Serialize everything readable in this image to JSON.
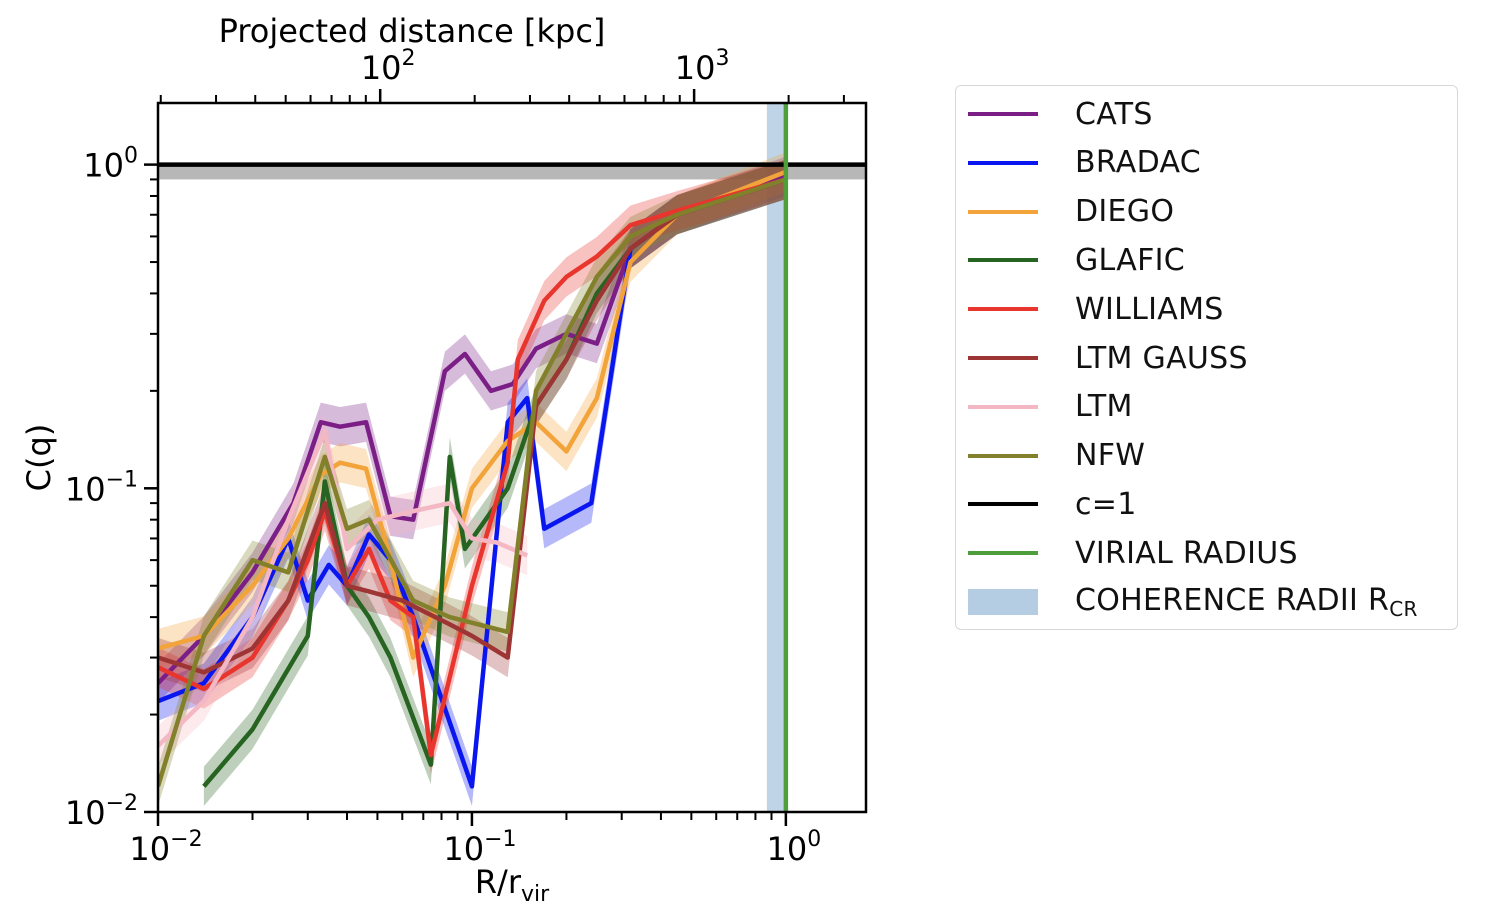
{
  "chart_data": {
    "type": "line",
    "xscale": "log",
    "yscale": "log",
    "xlim": [
      0.01,
      1.8
    ],
    "ylim": [
      0.01,
      1.55
    ],
    "xlabel_base": "R/r",
    "xlabel_sub": "vir",
    "ylabel": "C(q)",
    "top_axis_label": "Projected distance [kpc]",
    "top_axis_kpc_per_rvir": 1960,
    "x_ticks": [
      {
        "value": 0.01,
        "base": "10",
        "exp": "−2"
      },
      {
        "value": 0.1,
        "base": "10",
        "exp": "−1"
      },
      {
        "value": 1,
        "base": "10",
        "exp": "0"
      }
    ],
    "y_ticks": [
      {
        "value": 0.01,
        "base": "10",
        "exp": "−2"
      },
      {
        "value": 0.1,
        "base": "10",
        "exp": "−1"
      },
      {
        "value": 1,
        "base": "10",
        "exp": "0"
      }
    ],
    "top_ticks": [
      {
        "value": 100,
        "base": "10",
        "exp": "2"
      },
      {
        "value": 1000,
        "base": "10",
        "exp": "3"
      }
    ],
    "series": [
      {
        "name": "CATS",
        "color": "#7b1f87",
        "x": [
          0.01,
          0.014,
          0.02,
          0.027,
          0.033,
          0.038,
          0.046,
          0.055,
          0.065,
          0.082,
          0.095,
          0.115,
          0.135,
          0.16,
          0.2,
          0.25,
          0.32,
          0.45,
          1.0
        ],
        "y": [
          0.025,
          0.035,
          0.055,
          0.09,
          0.16,
          0.155,
          0.16,
          0.082,
          0.08,
          0.23,
          0.26,
          0.2,
          0.21,
          0.27,
          0.3,
          0.28,
          0.55,
          0.7,
          0.92
        ]
      },
      {
        "name": "BRADAC",
        "color": "#0a16f0",
        "x": [
          0.01,
          0.014,
          0.02,
          0.026,
          0.03,
          0.035,
          0.04,
          0.047,
          0.055,
          0.065,
          0.1,
          0.13,
          0.15,
          0.17,
          0.24,
          0.32,
          0.45,
          1.0
        ],
        "y": [
          0.022,
          0.025,
          0.04,
          0.07,
          0.045,
          0.058,
          0.05,
          0.072,
          0.06,
          0.04,
          0.012,
          0.16,
          0.19,
          0.075,
          0.09,
          0.55,
          0.7,
          0.9
        ]
      },
      {
        "name": "DIEGO",
        "color": "#f2a33a",
        "x": [
          0.01,
          0.014,
          0.02,
          0.026,
          0.033,
          0.038,
          0.046,
          0.055,
          0.065,
          0.082,
          0.1,
          0.13,
          0.16,
          0.2,
          0.25,
          0.32,
          0.45,
          1.0
        ],
        "y": [
          0.032,
          0.035,
          0.05,
          0.07,
          0.11,
          0.12,
          0.115,
          0.06,
          0.03,
          0.05,
          0.1,
          0.14,
          0.16,
          0.13,
          0.19,
          0.5,
          0.7,
          0.95
        ]
      },
      {
        "name": "GLAFIC",
        "color": "#276321",
        "x": [
          0.014,
          0.02,
          0.03,
          0.034,
          0.04,
          0.047,
          0.055,
          0.074,
          0.085,
          0.095,
          0.13,
          0.16,
          0.2,
          0.25,
          0.32,
          0.45,
          1.0
        ],
        "y": [
          0.012,
          0.018,
          0.035,
          0.105,
          0.05,
          0.04,
          0.03,
          0.014,
          0.125,
          0.065,
          0.1,
          0.18,
          0.25,
          0.4,
          0.55,
          0.7,
          0.9
        ]
      },
      {
        "name": "WILLIAMS",
        "color": "#e8352d",
        "x": [
          0.01,
          0.014,
          0.02,
          0.026,
          0.03,
          0.034,
          0.04,
          0.047,
          0.055,
          0.065,
          0.074,
          0.1,
          0.13,
          0.14,
          0.17,
          0.2,
          0.25,
          0.32,
          0.45,
          1.0
        ],
        "y": [
          0.028,
          0.024,
          0.03,
          0.045,
          0.06,
          0.085,
          0.05,
          0.065,
          0.045,
          0.04,
          0.015,
          0.05,
          0.12,
          0.25,
          0.38,
          0.45,
          0.52,
          0.65,
          0.72,
          0.9
        ]
      },
      {
        "name": "LTM GAUSS",
        "color": "#9e3535",
        "x": [
          0.01,
          0.014,
          0.02,
          0.026,
          0.034,
          0.04,
          0.047,
          0.06,
          0.085,
          0.1,
          0.13,
          0.16,
          0.2,
          0.25,
          0.32,
          0.45,
          1.0
        ],
        "y": [
          0.03,
          0.027,
          0.032,
          0.045,
          0.09,
          0.05,
          0.048,
          0.045,
          0.038,
          0.035,
          0.03,
          0.18,
          0.25,
          0.38,
          0.55,
          0.7,
          0.9
        ]
      },
      {
        "name": "LTM",
        "color": "#f4b8c4",
        "x": [
          0.01,
          0.014,
          0.02,
          0.026,
          0.034,
          0.04,
          0.05,
          0.065,
          0.085,
          0.1,
          0.12,
          0.15
        ],
        "y": [
          0.016,
          0.022,
          0.04,
          0.08,
          0.15,
          0.065,
          0.08,
          0.085,
          0.09,
          0.07,
          0.068,
          0.062
        ]
      },
      {
        "name": "NFW",
        "color": "#82802a",
        "x": [
          0.01,
          0.014,
          0.02,
          0.026,
          0.034,
          0.04,
          0.047,
          0.065,
          0.085,
          0.13,
          0.16,
          0.2,
          0.25,
          0.32,
          0.45,
          1.0
        ],
        "y": [
          0.012,
          0.035,
          0.06,
          0.055,
          0.125,
          0.075,
          0.08,
          0.045,
          0.04,
          0.036,
          0.2,
          0.3,
          0.45,
          0.6,
          0.7,
          0.9
        ]
      }
    ],
    "reference_lines": [
      {
        "name": "c=1",
        "orientation": "horizontal",
        "value": 1,
        "color": "#000000",
        "band": [
          0.9,
          1.0
        ],
        "band_color": "#999999"
      },
      {
        "name": "VIRIAL RADIUS",
        "orientation": "vertical",
        "value": 1,
        "color": "#4f9e3c"
      }
    ],
    "bands": [
      {
        "name": "COHERENCE RADII R",
        "name_sub": "CR",
        "orientation": "vertical",
        "range": [
          0.87,
          1.0
        ],
        "color": "#b4cde3"
      }
    ],
    "legend": {
      "position": "outside-right",
      "entries": [
        {
          "label": "CATS",
          "color": "#7b1f87",
          "kind": "line"
        },
        {
          "label": "BRADAC",
          "color": "#0a16f0",
          "kind": "line"
        },
        {
          "label": "DIEGO",
          "color": "#f2a33a",
          "kind": "line"
        },
        {
          "label": "GLAFIC",
          "color": "#276321",
          "kind": "line"
        },
        {
          "label": "WILLIAMS",
          "color": "#e8352d",
          "kind": "line"
        },
        {
          "label": "LTM GAUSS",
          "color": "#9e3535",
          "kind": "line"
        },
        {
          "label": "LTM",
          "color": "#f4b8c4",
          "kind": "line"
        },
        {
          "label": "NFW",
          "color": "#82802a",
          "kind": "line"
        },
        {
          "label": "c=1",
          "color": "#000000",
          "kind": "line"
        },
        {
          "label": "VIRIAL RADIUS",
          "color": "#4f9e3c",
          "kind": "line"
        },
        {
          "label": "COHERENCE RADII R",
          "sub": "CR",
          "color": "#b4cde3",
          "kind": "patch"
        }
      ]
    }
  }
}
